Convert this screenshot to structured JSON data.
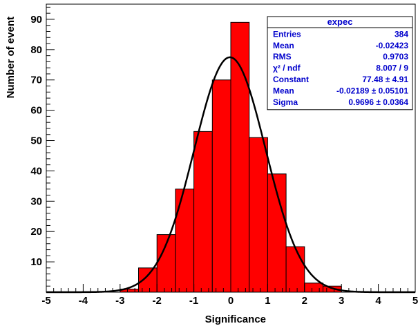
{
  "chart_data": {
    "type": "bar",
    "xlabel": "Significance",
    "ylabel": "Number of event",
    "xlim": [
      -5,
      5
    ],
    "ylim": [
      0,
      95
    ],
    "x_ticks": [
      -5,
      -4,
      -3,
      -2,
      -1,
      0,
      1,
      2,
      3,
      4,
      5
    ],
    "y_ticks": [
      10,
      20,
      30,
      40,
      50,
      60,
      70,
      80,
      90
    ],
    "x_tick_labels": [
      "-5",
      "-4",
      "-3",
      "-2",
      "-1",
      "0",
      "1",
      "2",
      "3",
      "4",
      "5"
    ],
    "y_tick_labels": [
      "10",
      "20",
      "30",
      "40",
      "50",
      "60",
      "70",
      "80",
      "90"
    ],
    "bin_edges": [
      -3.0,
      -2.5,
      -2.0,
      -1.5,
      -1.0,
      -0.5,
      0.0,
      0.5,
      1.0,
      1.5,
      2.0,
      2.5,
      3.0
    ],
    "values": [
      1,
      8,
      19,
      34,
      53,
      70,
      89,
      51,
      39,
      15,
      3,
      2
    ],
    "bar_color": "#ff0000",
    "fit": {
      "function": "gaus",
      "constant": 77.48,
      "mean": -0.02189,
      "sigma": 0.9696,
      "color": "#000000"
    },
    "stats_box": {
      "title": "expec",
      "rows": [
        {
          "label": "Entries",
          "value": "384"
        },
        {
          "label": "Mean",
          "value": "-0.02423"
        },
        {
          "label": "RMS",
          "value": "0.9703"
        },
        {
          "label": "χ² / ndf",
          "value": "8.007 / 9"
        },
        {
          "label": "Constant",
          "value": "77.48 ± 4.91"
        },
        {
          "label": "Mean",
          "value": "-0.02189 ± 0.05101"
        },
        {
          "label": "Sigma",
          "value": "0.9696 ± 0.0364"
        }
      ],
      "position": "top-right",
      "text_color": "#0000cc"
    }
  }
}
